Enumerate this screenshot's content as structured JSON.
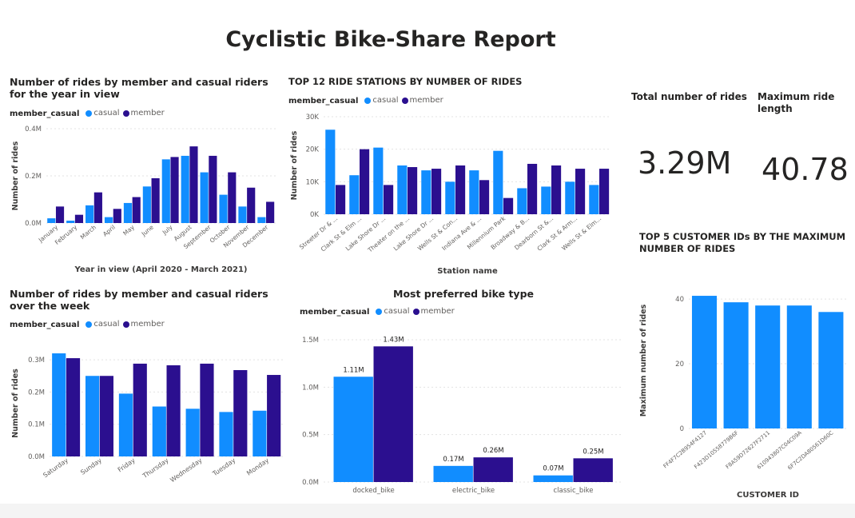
{
  "report": {
    "title": "Cyclistic Bike-Share Report"
  },
  "colors": {
    "casual": "#118dff",
    "member": "#2b0f8f",
    "grid": "#e3e3e3",
    "axis_text": "#605e5c"
  },
  "legend": {
    "title": "member_casual",
    "casual": "casual",
    "member": "member"
  },
  "kpis": [
    {
      "label": "Total number of rides",
      "value": "3.29M"
    },
    {
      "label": "Maximum ride length",
      "value": "40.78"
    }
  ],
  "chart_data": [
    {
      "id": "monthly",
      "type": "bar",
      "title": "Number of rides by member and casual riders for the year in view",
      "xlabel": "Year in view (April 2020 - March 2021)",
      "ylabel": "Number of rides",
      "categories": [
        "January",
        "February",
        "March",
        "April",
        "May",
        "June",
        "July",
        "August",
        "September",
        "October",
        "November",
        "December"
      ],
      "series": [
        {
          "name": "casual",
          "values": [
            20000,
            10000,
            75000,
            25000,
            85000,
            155000,
            270000,
            285000,
            215000,
            120000,
            70000,
            25000
          ]
        },
        {
          "name": "member",
          "values": [
            70000,
            35000,
            130000,
            60000,
            110000,
            190000,
            280000,
            325000,
            285000,
            215000,
            150000,
            90000
          ]
        }
      ],
      "ylim": [
        0,
        400000
      ],
      "yticks": [
        0,
        200000,
        400000
      ],
      "ytick_labels": [
        "0.0M",
        "0.2M",
        "0.4M"
      ],
      "grid": true,
      "legend": "top-left"
    },
    {
      "id": "stations",
      "type": "bar",
      "title": "TOP 12 RIDE STATIONS BY NUMBER OF RIDES",
      "xlabel": "Station name",
      "ylabel": "Number of rides",
      "categories": [
        "Streeter Dr & ...",
        "Clark St & Elm ...",
        "Lake Shore Dr ...",
        "Theater on the ...",
        "Lake Shore Dr ...",
        "Wells St & Con...",
        "Indiana Ave & ...",
        "Millennium Park",
        "Broadway & B...",
        "Dearborn St &...",
        "Clark St & Arm...",
        "Wells St & Elm..."
      ],
      "series": [
        {
          "name": "casual",
          "values": [
            26000,
            12000,
            20500,
            15000,
            13500,
            10000,
            13500,
            19500,
            8000,
            8500,
            10000,
            9000
          ]
        },
        {
          "name": "member",
          "values": [
            9000,
            20000,
            9000,
            14500,
            14000,
            15000,
            10500,
            5000,
            15500,
            15000,
            14000,
            14000
          ]
        }
      ],
      "ylim": [
        0,
        30000
      ],
      "yticks": [
        0,
        10000,
        20000,
        30000
      ],
      "ytick_labels": [
        "0K",
        "10K",
        "20K",
        "30K"
      ],
      "grid": true,
      "legend": "top-left"
    },
    {
      "id": "weekday",
      "type": "bar",
      "title": "Number of rides by member and casual riders over the week",
      "xlabel": "",
      "ylabel": "Number of rides",
      "categories": [
        "Saturday",
        "Sunday",
        "Friday",
        "Thursday",
        "Wednesday",
        "Tuesday",
        "Monday"
      ],
      "series": [
        {
          "name": "casual",
          "values": [
            320000,
            250000,
            195000,
            155000,
            148000,
            138000,
            142000
          ]
        },
        {
          "name": "member",
          "values": [
            305000,
            250000,
            288000,
            283000,
            288000,
            268000,
            253000
          ]
        }
      ],
      "ylim": [
        0,
        330000
      ],
      "yticks": [
        0,
        100000,
        200000,
        300000
      ],
      "ytick_labels": [
        "0.0M",
        "0.1M",
        "0.2M",
        "0.3M"
      ],
      "grid": true,
      "legend": "top-left"
    },
    {
      "id": "biketype",
      "type": "bar",
      "title": "Most preferred bike type",
      "xlabel": "",
      "ylabel": "",
      "categories": [
        "docked_bike",
        "electric_bike",
        "classic_bike"
      ],
      "series": [
        {
          "name": "casual",
          "values": [
            1110000,
            170000,
            70000
          ],
          "labels": [
            "1.11M",
            "0.17M",
            "0.07M"
          ]
        },
        {
          "name": "member",
          "values": [
            1430000,
            260000,
            250000
          ],
          "labels": [
            "1.43M",
            "0.26M",
            "0.25M"
          ]
        }
      ],
      "ylim": [
        0,
        1500000
      ],
      "yticks": [
        0,
        500000,
        1000000,
        1500000
      ],
      "ytick_labels": [
        "0.0M",
        "0.5M",
        "1.0M",
        "1.5M"
      ],
      "grid": true,
      "legend": "top-left"
    },
    {
      "id": "customers",
      "type": "bar",
      "title": "TOP 5 CUSTOMER IDs BY THE MAXIMUM NUMBER OF RIDES",
      "xlabel": "CUSTOMER ID",
      "ylabel": "Maximum number of rides",
      "categories": [
        "FF4F7C2B954F4127",
        "F423D10558779B6F",
        "F8A59D72627F2711",
        "610943807C04C09A",
        "6F7C2DA80561D60C"
      ],
      "series": [
        {
          "name": "",
          "values": [
            41,
            39,
            38,
            38,
            36
          ]
        }
      ],
      "ylim": [
        0,
        42
      ],
      "yticks": [
        0,
        20,
        40
      ],
      "ytick_labels": [
        "0",
        "20",
        "40"
      ],
      "grid": true,
      "legend": "none"
    }
  ]
}
